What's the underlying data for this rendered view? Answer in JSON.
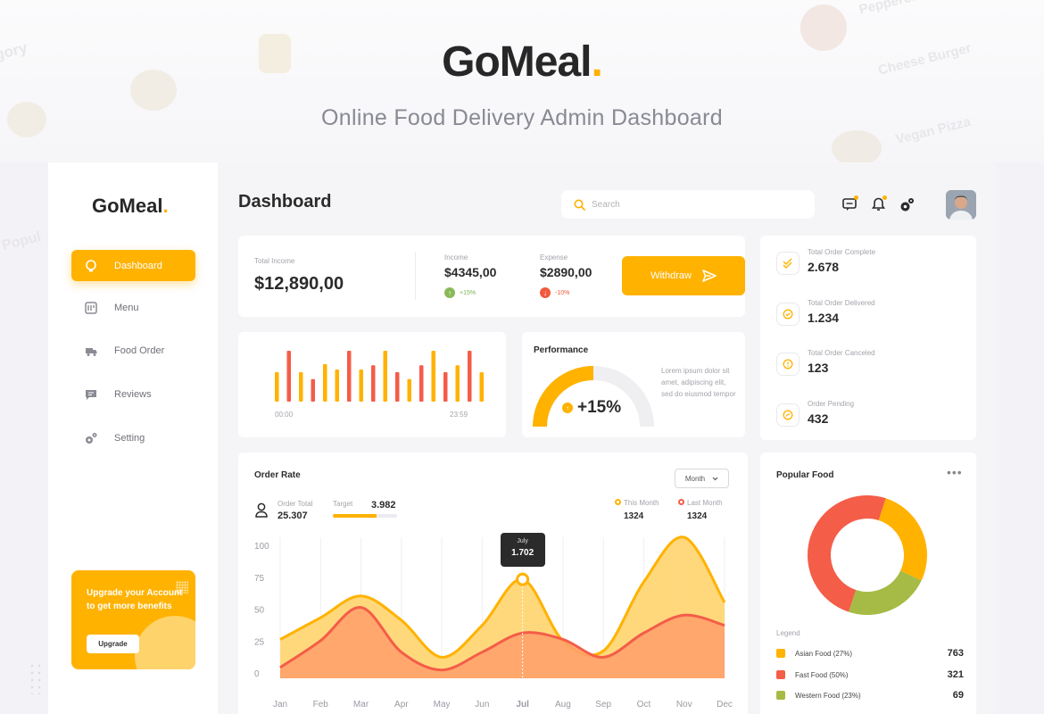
{
  "hero": {
    "brand": "GoMeal",
    "brand_dot": ".",
    "subtitle": "Online Food Delivery Admin Dashboard",
    "decor_words": [
      "gory",
      "Pepperoni",
      "Cheese Burger",
      "Vegan Pizza",
      "Popul"
    ]
  },
  "sidebar": {
    "brand": "GoMeal",
    "brand_dot": ".",
    "items": [
      {
        "label": "Dashboard",
        "icon": "dashboard-icon",
        "active": true
      },
      {
        "label": "Menu",
        "icon": "menu-icon",
        "active": false
      },
      {
        "label": "Food Order",
        "icon": "food-order-icon",
        "active": false
      },
      {
        "label": "Reviews",
        "icon": "reviews-icon",
        "active": false
      },
      {
        "label": "Setting",
        "icon": "setting-icon",
        "active": false
      }
    ],
    "upgrade": {
      "text": "Upgrade your Account to get more benefits",
      "button": "Upgrade"
    }
  },
  "header": {
    "title": "Dashboard",
    "search_placeholder": "Search",
    "icons": [
      "chat-icon",
      "bell-icon",
      "gear-icon"
    ]
  },
  "income": {
    "total_label": "Total Income",
    "total_value": "$12,890,00",
    "income_label": "Income",
    "income_value": "$4345,00",
    "income_change": "+15%",
    "expense_label": "Expense",
    "expense_value": "$2890,00",
    "expense_change": "-10%",
    "withdraw_label": "Withdraw"
  },
  "hourly_bars": {
    "start_label": "00:00",
    "end_label": "23:59",
    "bars": [
      {
        "v": 0.55,
        "c": "orange"
      },
      {
        "v": 0.95,
        "c": "red"
      },
      {
        "v": 0.55,
        "c": "orange"
      },
      {
        "v": 0.42,
        "c": "red"
      },
      {
        "v": 0.7,
        "c": "orange"
      },
      {
        "v": 0.6,
        "c": "orange"
      },
      {
        "v": 0.95,
        "c": "red"
      },
      {
        "v": 0.6,
        "c": "orange"
      },
      {
        "v": 0.68,
        "c": "red"
      },
      {
        "v": 0.95,
        "c": "orange"
      },
      {
        "v": 0.55,
        "c": "red"
      },
      {
        "v": 0.42,
        "c": "orange"
      },
      {
        "v": 0.68,
        "c": "red"
      },
      {
        "v": 0.95,
        "c": "orange"
      },
      {
        "v": 0.55,
        "c": "red"
      },
      {
        "v": 0.68,
        "c": "orange"
      },
      {
        "v": 0.95,
        "c": "red"
      },
      {
        "v": 0.55,
        "c": "orange"
      }
    ]
  },
  "performance": {
    "title": "Performance",
    "value": "+15%",
    "gauge_fraction": 0.5,
    "description": "Lorem ipsum dolor sit amet, adipiscing elit, sed do eiusmod tempor"
  },
  "order_stats": [
    {
      "label": "Total Order Complete",
      "value": "2.678",
      "icon": "double-check-icon"
    },
    {
      "label": "Total Order Delivered",
      "value": "1.234",
      "icon": "check-circle-icon"
    },
    {
      "label": "Total Order Canceled",
      "value": "123",
      "icon": "alert-circle-icon"
    },
    {
      "label": "Order Pending",
      "value": "432",
      "icon": "pending-icon"
    }
  ],
  "order_rate": {
    "title": "Order Rate",
    "select_value": "Month",
    "order_total_label": "Order Total",
    "order_total_value": "25.307",
    "target_label": "Target",
    "target_value": "3.982",
    "target_progress": 0.68,
    "this_month_label": "This Month",
    "this_month_value": "1324",
    "last_month_label": "Last Month",
    "last_month_value": "1324",
    "tooltip_month": "July",
    "tooltip_value": "1.702",
    "colors": {
      "this_month": "#ffb200",
      "last_month": "#f45d48"
    }
  },
  "chart_data": {
    "type": "area",
    "categories": [
      "Jan",
      "Feb",
      "Mar",
      "Apr",
      "May",
      "Jun",
      "Jul",
      "Aug",
      "Sep",
      "Oct",
      "Nov",
      "Dec"
    ],
    "ylim": [
      0,
      100
    ],
    "yticks": [
      0,
      25,
      50,
      75,
      100
    ],
    "series": [
      {
        "name": "This Month",
        "values": [
          27,
          44,
          61,
          42,
          13,
          38,
          74,
          26,
          18,
          72,
          107,
          56
        ]
      },
      {
        "name": "Last Month",
        "values": [
          5,
          26,
          52,
          17,
          3,
          17,
          32,
          27,
          13,
          32,
          46,
          38
        ]
      }
    ],
    "highlight": {
      "category": "Jul",
      "label": "1.702"
    }
  },
  "popular_food": {
    "title": "Popular Food",
    "legend_title": "Legend",
    "items": [
      {
        "name": "Asian Food (27%)",
        "value": "763",
        "color": "#ffb200",
        "pct": 27
      },
      {
        "name": "Fast Food (50%)",
        "value": "321",
        "color": "#f45d48",
        "pct": 50
      },
      {
        "name": "Western Food (23%)",
        "value": "69",
        "color": "#a5bb45",
        "pct": 23
      }
    ]
  }
}
